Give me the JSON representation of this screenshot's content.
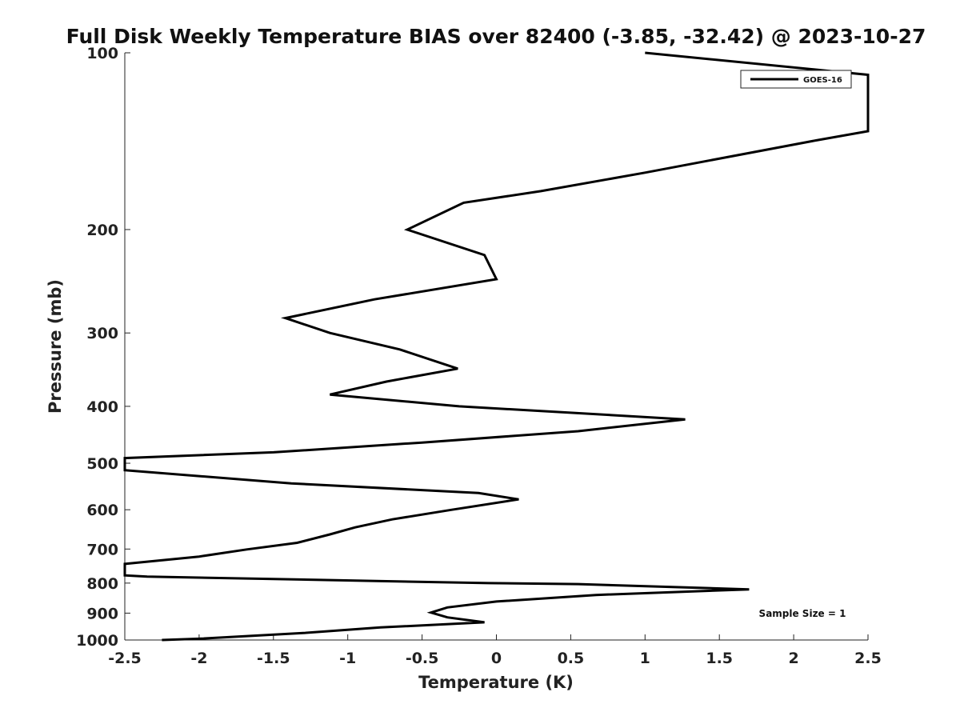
{
  "chart_data": {
    "type": "line",
    "title": "Full Disk Weekly Temperature BIAS over 82400 (-3.85, -32.42) @ 2023-10-27",
    "xlabel": "Temperature (K)",
    "ylabel": "Pressure (mb)",
    "xlim": [
      -2.5,
      2.5
    ],
    "ylim": [
      1000,
      100
    ],
    "yscale": "log",
    "y_inverted": true,
    "grid": false,
    "legend_position": "top-right",
    "x_ticks": [
      -2.5,
      -2,
      -1.5,
      -1,
      -0.5,
      0,
      0.5,
      1,
      1.5,
      2,
      2.5
    ],
    "x_tick_labels": [
      "-2.5",
      "-2",
      "-1.5",
      "-1",
      "-0.5",
      "0",
      "0.5",
      "1",
      "1.5",
      "2",
      "2.5"
    ],
    "y_ticks": [
      100,
      200,
      300,
      400,
      500,
      600,
      700,
      800,
      900,
      1000
    ],
    "y_tick_labels": [
      "100",
      "200",
      "300",
      "400",
      "500",
      "600",
      "700",
      "800",
      "900",
      "1000"
    ],
    "series": [
      {
        "name": "GOES-16",
        "color": "#000000",
        "points": [
          {
            "x": 1.0,
            "y": 100
          },
          {
            "x": 2.5,
            "y": 109
          },
          {
            "x": 2.5,
            "y": 136
          },
          {
            "x": 2.15,
            "y": 141
          },
          {
            "x": 1.0,
            "y": 160
          },
          {
            "x": 0.3,
            "y": 172
          },
          {
            "x": -0.22,
            "y": 180
          },
          {
            "x": -0.6,
            "y": 200
          },
          {
            "x": -0.08,
            "y": 221
          },
          {
            "x": 0.0,
            "y": 243
          },
          {
            "x": -0.82,
            "y": 263
          },
          {
            "x": -1.42,
            "y": 283
          },
          {
            "x": -1.12,
            "y": 300
          },
          {
            "x": -0.65,
            "y": 320
          },
          {
            "x": -0.26,
            "y": 345
          },
          {
            "x": -0.74,
            "y": 363
          },
          {
            "x": -1.12,
            "y": 382
          },
          {
            "x": -0.25,
            "y": 400
          },
          {
            "x": 1.27,
            "y": 421
          },
          {
            "x": 0.55,
            "y": 441
          },
          {
            "x": -0.5,
            "y": 461
          },
          {
            "x": -1.5,
            "y": 479
          },
          {
            "x": -2.5,
            "y": 490
          },
          {
            "x": -2.5,
            "y": 514
          },
          {
            "x": -1.38,
            "y": 541
          },
          {
            "x": -0.12,
            "y": 562
          },
          {
            "x": 0.15,
            "y": 576
          },
          {
            "x": -0.3,
            "y": 600
          },
          {
            "x": -0.7,
            "y": 623
          },
          {
            "x": -0.95,
            "y": 643
          },
          {
            "x": -1.12,
            "y": 661
          },
          {
            "x": -1.34,
            "y": 683
          },
          {
            "x": -1.68,
            "y": 701
          },
          {
            "x": -2.0,
            "y": 721
          },
          {
            "x": -2.5,
            "y": 742
          },
          {
            "x": -2.5,
            "y": 776
          },
          {
            "x": -2.35,
            "y": 780
          },
          {
            "x": -0.05,
            "y": 800
          },
          {
            "x": 0.55,
            "y": 803
          },
          {
            "x": 1.7,
            "y": 820
          },
          {
            "x": 0.67,
            "y": 838
          },
          {
            "x": 0.0,
            "y": 860
          },
          {
            "x": -0.33,
            "y": 880
          },
          {
            "x": -0.44,
            "y": 898
          },
          {
            "x": -0.33,
            "y": 915
          },
          {
            "x": -0.08,
            "y": 933
          },
          {
            "x": -0.78,
            "y": 952
          },
          {
            "x": -1.3,
            "y": 973
          },
          {
            "x": -2.0,
            "y": 995
          },
          {
            "x": -2.25,
            "y": 1000
          }
        ]
      }
    ],
    "annotations": [
      {
        "text": "Sample Size = 1"
      }
    ]
  }
}
